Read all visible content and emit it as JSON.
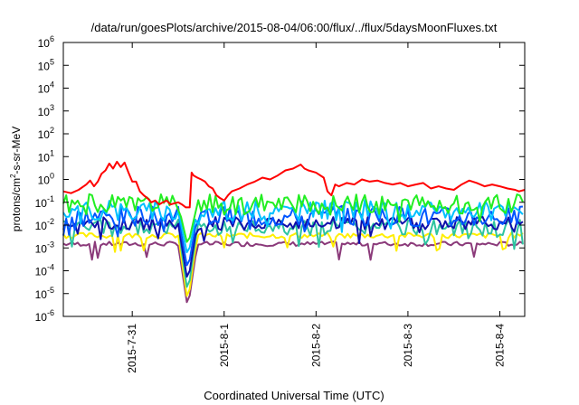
{
  "chart_data": {
    "type": "line",
    "title": "/data/run/goesPlots/archive/2015-08-04/06:00/flux/../flux/5daysMoonFluxes.txt",
    "xlabel": "Coordinated Universal Time (UTC)",
    "ylabel": "protons/cm²-s-sr-MeV",
    "ylabel_parts": {
      "pre": "protons/cm",
      "sup": "2",
      "post": "-s-sr-MeV"
    },
    "y_scale": "log",
    "ylim": [
      1e-06,
      1000000.0
    ],
    "y_ticks": [
      {
        "base": "10",
        "exp": "-6",
        "value": 1e-06
      },
      {
        "base": "10",
        "exp": "-5",
        "value": 1e-05
      },
      {
        "base": "10",
        "exp": "-4",
        "value": 0.0001
      },
      {
        "base": "10",
        "exp": "-3",
        "value": 0.001
      },
      {
        "base": "10",
        "exp": "-2",
        "value": 0.01
      },
      {
        "base": "10",
        "exp": "-1",
        "value": 0.1
      },
      {
        "base": "10",
        "exp": "0",
        "value": 1
      },
      {
        "base": "10",
        "exp": "1",
        "value": 10
      },
      {
        "base": "10",
        "exp": "2",
        "value": 100
      },
      {
        "base": "10",
        "exp": "3",
        "value": 1000
      },
      {
        "base": "10",
        "exp": "4",
        "value": 10000
      },
      {
        "base": "10",
        "exp": "5",
        "value": 100000
      },
      {
        "base": "10",
        "exp": "6",
        "value": 1000000
      }
    ],
    "xlim": [
      "2015-07-30T06:00",
      "2015-08-04T06:30"
    ],
    "x_ticks": [
      {
        "label": "2015-7-31",
        "value": "2015-07-31"
      },
      {
        "label": "2015-8-1",
        "value": "2015-08-01"
      },
      {
        "label": "2015-8-2",
        "value": "2015-08-02"
      },
      {
        "label": "2015-8-3",
        "value": "2015-08-03"
      },
      {
        "label": "2015-8-4",
        "value": "2015-08-04"
      }
    ],
    "grid": false,
    "legend": "none",
    "series": [
      {
        "color": "#ff0000",
        "points": [
          [
            "2015-07-30T06:00",
            0.3
          ],
          [
            "2015-07-30T08:00",
            0.25
          ],
          [
            "2015-07-30T10:00",
            0.35
          ],
          [
            "2015-07-30T12:00",
            0.6
          ],
          [
            "2015-07-30T13:00",
            0.9
          ],
          [
            "2015-07-30T14:00",
            0.5
          ],
          [
            "2015-07-30T15:00",
            0.8
          ],
          [
            "2015-07-30T16:00",
            1.8
          ],
          [
            "2015-07-30T17:00",
            2.5
          ],
          [
            "2015-07-30T18:00",
            5
          ],
          [
            "2015-07-30T19:00",
            3
          ],
          [
            "2015-07-30T20:00",
            6
          ],
          [
            "2015-07-30T21:00",
            3.5
          ],
          [
            "2015-07-30T22:00",
            5.5
          ],
          [
            "2015-07-30T23:00",
            2
          ],
          [
            "2015-07-31T00:00",
            0.8
          ],
          [
            "2015-07-31T01:00",
            0.8
          ],
          [
            "2015-07-31T02:00",
            0.3
          ],
          [
            "2015-07-31T03:00",
            0.2
          ],
          [
            "2015-07-31T04:00",
            0.15
          ],
          [
            "2015-07-31T05:00",
            0.1
          ],
          [
            "2015-07-31T06:00",
            0.12
          ],
          [
            "2015-07-31T07:00",
            0.08
          ],
          [
            "2015-07-31T08:00",
            0.1
          ],
          [
            "2015-07-31T09:00",
            0.12
          ],
          [
            "2015-07-31T10:00",
            0.08
          ],
          [
            "2015-07-31T11:00",
            0.09
          ],
          [
            "2015-07-31T12:00",
            0.1
          ],
          [
            "2015-07-31T13:00",
            0.08
          ],
          [
            "2015-07-31T14:00",
            0.06
          ],
          [
            "2015-07-31T15:00",
            0.06
          ],
          [
            "2015-07-31T15:30",
            2
          ],
          [
            "2015-07-31T16:00",
            1.5
          ],
          [
            "2015-07-31T17:00",
            1.2
          ],
          [
            "2015-07-31T18:00",
            1
          ],
          [
            "2015-07-31T19:00",
            0.8
          ],
          [
            "2015-07-31T20:00",
            0.5
          ],
          [
            "2015-07-31T21:00",
            0.4
          ],
          [
            "2015-07-31T22:00",
            0.2
          ],
          [
            "2015-07-31T23:00",
            0.15
          ],
          [
            "2015-08-01T00:00",
            0.12
          ],
          [
            "2015-08-01T01:00",
            0.2
          ],
          [
            "2015-08-01T02:00",
            0.3
          ],
          [
            "2015-08-01T04:00",
            0.4
          ],
          [
            "2015-08-01T06:00",
            0.6
          ],
          [
            "2015-08-01T08:00",
            0.8
          ],
          [
            "2015-08-01T10:00",
            1.2
          ],
          [
            "2015-08-01T12:00",
            1
          ],
          [
            "2015-08-01T14:00",
            1.5
          ],
          [
            "2015-08-01T16:00",
            2.5
          ],
          [
            "2015-08-01T18:00",
            3
          ],
          [
            "2015-08-01T20:00",
            4.5
          ],
          [
            "2015-08-01T21:00",
            3
          ],
          [
            "2015-08-01T22:00",
            2.5
          ],
          [
            "2015-08-02T00:00",
            2
          ],
          [
            "2015-08-02T02:00",
            1.2
          ],
          [
            "2015-08-02T03:00",
            0.3
          ],
          [
            "2015-08-02T04:00",
            0.2
          ],
          [
            "2015-08-02T05:00",
            0.6
          ],
          [
            "2015-08-02T06:00",
            0.5
          ],
          [
            "2015-08-02T08:00",
            0.7
          ],
          [
            "2015-08-02T10:00",
            0.6
          ],
          [
            "2015-08-02T12:00",
            1
          ],
          [
            "2015-08-02T14:00",
            0.8
          ],
          [
            "2015-08-02T16:00",
            0.9
          ],
          [
            "2015-08-02T18:00",
            0.7
          ],
          [
            "2015-08-02T20:00",
            0.6
          ],
          [
            "2015-08-02T22:00",
            0.7
          ],
          [
            "2015-08-03T00:00",
            0.5
          ],
          [
            "2015-08-03T02:00",
            0.6
          ],
          [
            "2015-08-03T04:00",
            0.7
          ],
          [
            "2015-08-03T06:00",
            0.4
          ],
          [
            "2015-08-03T08:00",
            0.5
          ],
          [
            "2015-08-03T10:00",
            0.4
          ],
          [
            "2015-08-03T12:00",
            0.35
          ],
          [
            "2015-08-03T14:00",
            0.6
          ],
          [
            "2015-08-03T16:00",
            0.9
          ],
          [
            "2015-08-03T18:00",
            0.7
          ],
          [
            "2015-08-03T20:00",
            0.5
          ],
          [
            "2015-08-03T22:00",
            0.6
          ],
          [
            "2015-08-04T00:00",
            0.5
          ],
          [
            "2015-08-04T02:00",
            0.4
          ],
          [
            "2015-08-04T04:00",
            0.35
          ],
          [
            "2015-08-04T05:00",
            0.3
          ],
          [
            "2015-08-04T06:30",
            0.35
          ]
        ]
      },
      {
        "color": "#22ee22",
        "base": 0.08,
        "jitter": 0.45,
        "dip": 0.0012,
        "seed": 1
      },
      {
        "color": "#00c0ff",
        "base": 0.045,
        "jitter": 0.45,
        "dip": 0.0004,
        "seed": 2
      },
      {
        "color": "#0055ff",
        "base": 0.025,
        "jitter": 0.45,
        "dip": 0.0001,
        "seed": 3
      },
      {
        "color": "#1010aa",
        "base": 0.012,
        "jitter": 0.3,
        "dip": 3e-05,
        "seed": 4
      },
      {
        "color": "#2ec4a0",
        "base": 0.008,
        "jitter": 0.35,
        "dip": 1e-05,
        "seed": 5
      },
      {
        "color": "#ffee00",
        "base": 0.0035,
        "jitter": 0.12,
        "dip": 4e-06,
        "seed": 6
      },
      {
        "color": "#8b3a7a",
        "base": 0.0015,
        "jitter": 0.1,
        "dip": 2.2e-06,
        "seed": 7
      }
    ]
  }
}
